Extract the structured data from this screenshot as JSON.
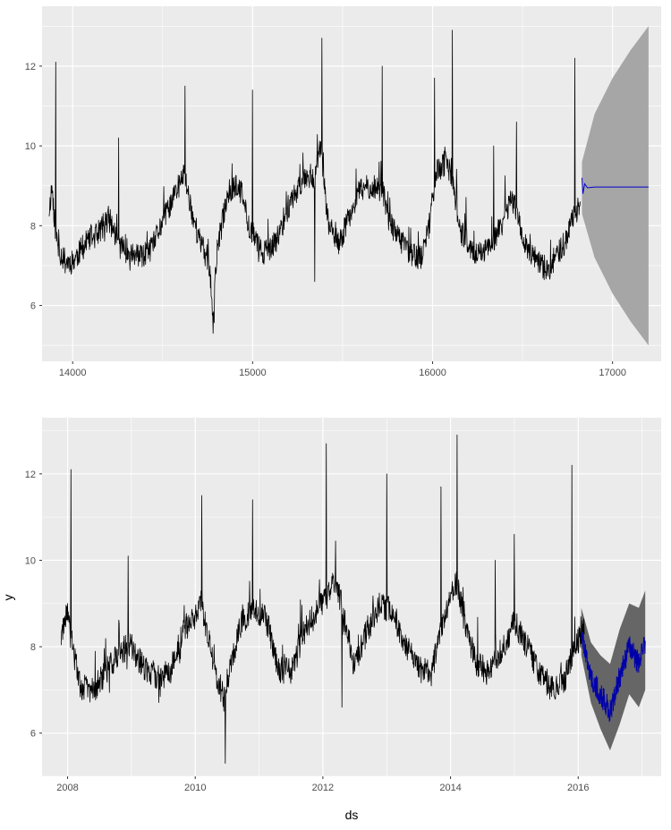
{
  "chart_data": [
    {
      "type": "line",
      "title": "",
      "xlabel": "",
      "ylabel": "",
      "xlim": [
        13830,
        17270
      ],
      "ylim": [
        4.6,
        13.5
      ],
      "x_ticks": [
        14000,
        15000,
        16000,
        17000
      ],
      "x_tick_labels": [
        "14000",
        "15000",
        "16000",
        "17000"
      ],
      "y_ticks": [
        6,
        8,
        10,
        12
      ],
      "y_tick_labels": [
        "6",
        "8",
        "10",
        "12"
      ],
      "grid": true,
      "colors": {
        "panel": "#ebebeb",
        "grid": "#ffffff",
        "history": "#000000",
        "forecast": "#0000cc",
        "interval": "#a6a6a6"
      },
      "history_anchors": {
        "x": [
          13870,
          13885,
          13900,
          13920,
          13960,
          14000,
          14080,
          14140,
          14200,
          14260,
          14320,
          14380,
          14440,
          14480,
          14540,
          14580,
          14620,
          14660,
          14700,
          14760,
          14780,
          14800,
          14860,
          14900,
          14940,
          14980,
          15040,
          15090,
          15140,
          15200,
          15260,
          15300,
          15340,
          15380,
          15420,
          15480,
          15540,
          15600,
          15660,
          15720,
          15760,
          15820,
          15880,
          15940,
          15980,
          16020,
          16080,
          16120,
          16160,
          16220,
          16260,
          16320,
          16380,
          16430,
          16460,
          16500,
          16560,
          16600,
          16640,
          16680,
          16740,
          16780,
          16800,
          16820
        ],
        "y": [
          8.4,
          9.0,
          8.1,
          7.4,
          7.1,
          7.1,
          7.6,
          7.8,
          8.2,
          7.5,
          7.3,
          7.2,
          7.4,
          7.9,
          8.5,
          8.9,
          9.3,
          8.4,
          7.7,
          7.0,
          5.5,
          7.3,
          8.8,
          9.0,
          8.8,
          8.0,
          7.4,
          7.3,
          7.7,
          8.5,
          9.0,
          9.3,
          9.2,
          10.0,
          8.0,
          7.5,
          8.3,
          8.9,
          9.0,
          8.9,
          8.1,
          7.6,
          7.3,
          7.2,
          8.0,
          9.4,
          9.6,
          8.8,
          7.8,
          7.4,
          7.2,
          7.5,
          8.0,
          8.6,
          8.5,
          7.7,
          7.2,
          7.0,
          6.8,
          7.2,
          7.6,
          8.2,
          8.4,
          8.5
        ]
      },
      "history_spikes": {
        "x": [
          13905,
          14255,
          14625,
          14780,
          15000,
          15345,
          15385,
          15720,
          16010,
          16110,
          16340,
          16465,
          16790
        ],
        "y": [
          12.1,
          10.2,
          11.5,
          5.3,
          11.4,
          6.6,
          12.7,
          12.0,
          11.7,
          12.9,
          10.0,
          10.6,
          12.2
        ]
      },
      "forecast": {
        "x": [
          16830,
          16835,
          16845,
          16860,
          16900,
          17200
        ],
        "y": [
          9.2,
          8.8,
          9.05,
          8.95,
          8.97,
          8.97
        ]
      },
      "interval": {
        "x": [
          16830,
          16900,
          17000,
          17100,
          17200
        ],
        "upper": [
          9.6,
          10.8,
          11.7,
          12.4,
          13.0
        ],
        "lower": [
          8.3,
          7.2,
          6.3,
          5.6,
          5.0
        ]
      }
    },
    {
      "type": "line",
      "title": "",
      "xlabel": "ds",
      "ylabel": "y",
      "xlim": [
        2007.6,
        2017.3
      ],
      "ylim": [
        5.0,
        13.3
      ],
      "x_ticks": [
        2008,
        2010,
        2012,
        2014,
        2016
      ],
      "x_tick_labels": [
        "2008",
        "2010",
        "2012",
        "2014",
        "2016"
      ],
      "y_ticks": [
        6,
        8,
        10,
        12
      ],
      "y_tick_labels": [
        "6",
        "8",
        "10",
        "12"
      ],
      "grid": true,
      "colors": {
        "panel": "#ebebeb",
        "grid": "#ffffff",
        "history": "#000000",
        "forecast": "#0000aa",
        "interval": "#666666"
      },
      "history_anchors": {
        "x": [
          2007.9,
          2008.0,
          2008.1,
          2008.2,
          2008.4,
          2008.6,
          2008.8,
          2009.0,
          2009.2,
          2009.4,
          2009.6,
          2009.8,
          2010.0,
          2010.1,
          2010.2,
          2010.3,
          2010.45,
          2010.5,
          2010.7,
          2010.9,
          2011.1,
          2011.3,
          2011.5,
          2011.7,
          2011.9,
          2012.1,
          2012.2,
          2012.35,
          2012.5,
          2012.7,
          2012.9,
          2013.1,
          2013.3,
          2013.5,
          2013.7,
          2013.9,
          2014.1,
          2014.2,
          2014.4,
          2014.6,
          2014.8,
          2015.0,
          2015.2,
          2015.4,
          2015.6,
          2015.8,
          2015.95,
          2016.1
        ],
        "y": [
          8.2,
          8.7,
          7.8,
          7.1,
          7.0,
          7.4,
          7.9,
          8.0,
          7.5,
          7.3,
          7.4,
          8.3,
          8.8,
          9.0,
          8.2,
          7.5,
          6.8,
          7.2,
          8.5,
          8.9,
          8.7,
          7.5,
          7.4,
          8.3,
          8.8,
          9.2,
          9.6,
          8.5,
          7.5,
          8.4,
          9.0,
          8.8,
          8.0,
          7.5,
          7.4,
          8.7,
          9.5,
          8.7,
          7.6,
          7.4,
          7.9,
          8.6,
          8.0,
          7.4,
          7.0,
          7.3,
          8.0,
          8.4
        ]
      },
      "history_spikes": {
        "x": [
          2008.05,
          2008.95,
          2010.1,
          2010.47,
          2010.9,
          2012.05,
          2012.3,
          2013.0,
          2013.85,
          2014.1,
          2014.7,
          2015.0,
          2015.9
        ],
        "y": [
          12.1,
          10.1,
          11.5,
          5.3,
          11.4,
          12.7,
          6.6,
          12.0,
          11.7,
          12.9,
          10.0,
          10.6,
          12.2
        ]
      },
      "forecast": {
        "x": [
          2016.05,
          2016.2,
          2016.35,
          2016.5,
          2016.65,
          2016.8,
          2016.95,
          2017.05
        ],
        "y": [
          8.3,
          7.3,
          6.9,
          6.5,
          7.3,
          8.0,
          7.6,
          8.1
        ]
      },
      "interval": {
        "x": [
          2016.05,
          2016.2,
          2016.35,
          2016.5,
          2016.65,
          2016.8,
          2016.95,
          2017.05
        ],
        "upper": [
          8.9,
          8.1,
          7.8,
          7.6,
          8.4,
          9.0,
          8.9,
          9.3
        ],
        "lower": [
          7.8,
          6.7,
          6.1,
          5.6,
          6.2,
          6.9,
          6.6,
          7.0
        ]
      }
    }
  ]
}
